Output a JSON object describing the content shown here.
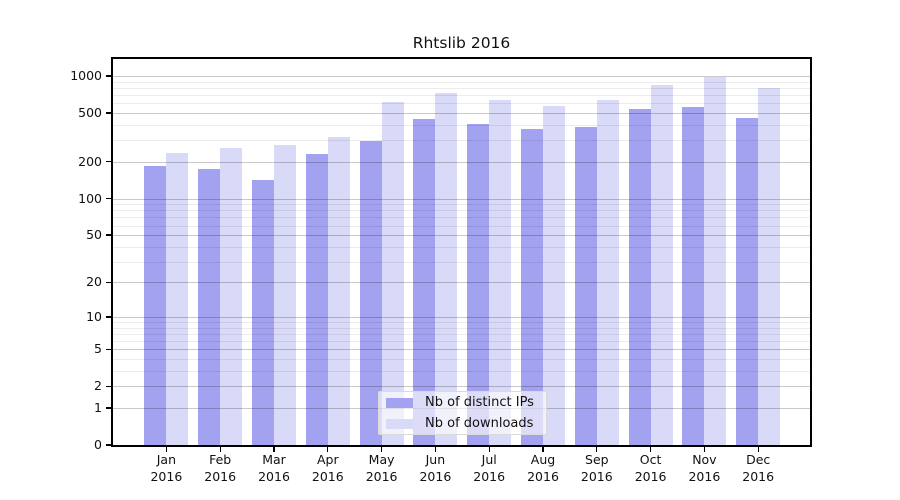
{
  "chart_data": {
    "type": "bar",
    "title": "Rhtslib 2016",
    "categories": [
      "Jan",
      "Feb",
      "Mar",
      "Apr",
      "May",
      "Jun",
      "Jul",
      "Aug",
      "Sep",
      "Oct",
      "Nov",
      "Dec"
    ],
    "category_year": "2016",
    "series": [
      {
        "name": "Nb of distinct IPs",
        "color": "#a2a2f0",
        "values": [
          185,
          176,
          143,
          230,
          295,
          445,
          410,
          368,
          388,
          540,
          557,
          453
        ]
      },
      {
        "name": "Nb of downloads",
        "color": "#d9d9f8",
        "values": [
          237,
          258,
          272,
          320,
          620,
          724,
          635,
          568,
          643,
          846,
          985,
          807
        ]
      }
    ],
    "xlabel": "",
    "ylabel": "",
    "yscale": "log1p",
    "ylim": [
      0,
      1376
    ],
    "yticks": [
      0,
      1,
      2,
      5,
      10,
      20,
      50,
      100,
      200,
      500,
      1000
    ],
    "ytick_labels": [
      "0",
      "1",
      "2",
      "5",
      "10",
      "20",
      "50",
      "100",
      "200",
      "500",
      "1000"
    ],
    "minor_gridlines": [
      3,
      4,
      6,
      7,
      8,
      9,
      30,
      40,
      60,
      70,
      80,
      90,
      300,
      400,
      600,
      700,
      800,
      900
    ],
    "grid": true,
    "legend_position": "inside-bottom-center"
  },
  "colors": {
    "background": "#ffffff",
    "axis": "#000000",
    "major_grid": "rgba(0,0,0,0.21)",
    "minor_grid": "rgba(0,0,0,0.075)",
    "bar_distinct_ips": "#a2a2f0",
    "bar_downloads": "#d9d9f8"
  }
}
